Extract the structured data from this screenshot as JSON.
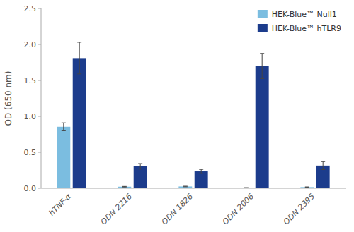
{
  "chart_data": {
    "type": "bar",
    "categories": [
      "hTNF-α",
      "ODN 2216",
      "ODN 1826",
      "ODN 2006",
      "ODN 2395"
    ],
    "series": [
      {
        "name": "HEK-Blue™ Null1",
        "color": "#7BBDE0",
        "values": [
          0.855,
          0.022,
          0.025,
          0.007,
          0.016
        ],
        "errors": [
          0.055,
          0.004,
          0.004,
          0.002,
          0.003
        ]
      },
      {
        "name": "HEK-Blue™ hTLR9",
        "color": "#1C3C8C",
        "values": [
          1.81,
          0.305,
          0.235,
          1.7,
          0.315
        ],
        "errors": [
          0.22,
          0.038,
          0.028,
          0.175,
          0.055
        ]
      }
    ],
    "ylabel": "OD (650 nm)",
    "ylim": [
      0,
      2.5
    ],
    "yticks": [
      {
        "value": 0,
        "label": "0.0"
      },
      0.5,
      {
        "value": 1,
        "label": "1.0"
      },
      1.5,
      {
        "value": 2,
        "label": "2.0"
      },
      2.5
    ],
    "grid": false,
    "legend": "upper right"
  }
}
